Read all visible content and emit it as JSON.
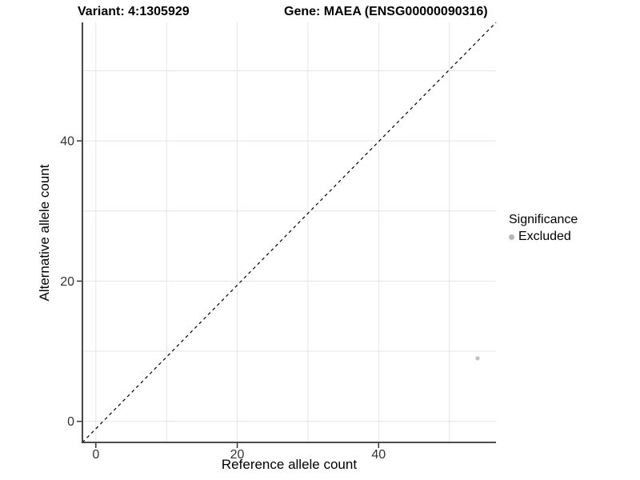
{
  "header": {
    "variant_title": "Variant: 4:1305929",
    "gene_title": "Gene: MAEA (ENSG00000090316)"
  },
  "chart_data": {
    "type": "scatter",
    "xlabel": "Reference allele count",
    "ylabel": "Alternative allele count",
    "x_ticks": [
      0,
      20,
      40
    ],
    "y_ticks": [
      0,
      20,
      40
    ],
    "gridline_values": [
      0,
      10,
      20,
      30,
      40,
      50
    ],
    "xlim": [
      -1.9,
      56.6
    ],
    "ylim": [
      -3.0,
      56.9
    ],
    "grid": true,
    "identity_line": {
      "type": "y=x",
      "style": "dashed",
      "color": "#000000"
    },
    "series": [
      {
        "name": "Excluded",
        "color": "#c1c1c1",
        "points": [
          {
            "x": 54,
            "y": 9
          }
        ]
      }
    ],
    "legend": {
      "title": "Significance",
      "position": "right",
      "items": [
        {
          "label": "Excluded",
          "color": "#b5b5b5"
        }
      ]
    },
    "colors": {
      "gridline": "#e4e4e4",
      "axis_line": "#333333",
      "tick_text": "#333333",
      "panel_background": "#ffffff"
    }
  }
}
